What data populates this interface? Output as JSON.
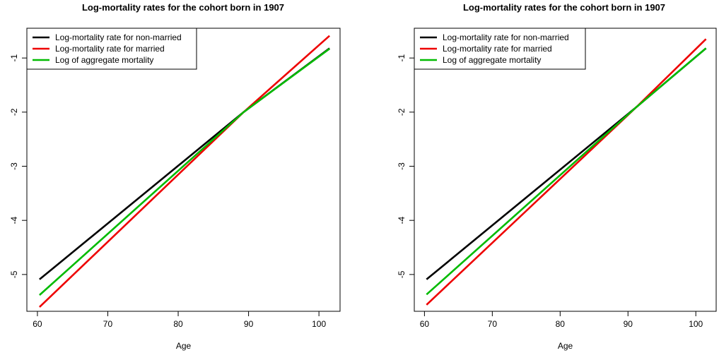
{
  "chart_data": [
    {
      "type": "line",
      "title": "Log-mortality rates for the cohort born in 1907",
      "xlabel": "Age",
      "ylabel": "",
      "xlim": [
        58.5,
        103
      ],
      "ylim": [
        -5.68,
        -0.45
      ],
      "xticks": [
        60,
        70,
        80,
        90,
        100
      ],
      "yticks": [
        -5,
        -4,
        -3,
        -2,
        -1
      ],
      "grid": false,
      "legend_position": "top-left",
      "series": [
        {
          "name": "Log-mortality rate for non-married",
          "color": "#000000",
          "x": [
            60.3,
            89.3,
            101.5
          ],
          "y": [
            -5.09,
            -2.0,
            -0.82
          ]
        },
        {
          "name": "Log-mortality rate for married",
          "color": "#ee0000",
          "x": [
            60.3,
            89.3,
            101.5
          ],
          "y": [
            -5.6,
            -2.0,
            -0.59
          ]
        },
        {
          "name": "Log of aggregate mortality",
          "color": "#00bb00",
          "x": [
            60.3,
            89.3,
            101.5
          ],
          "y": [
            -5.38,
            -2.0,
            -0.83
          ]
        }
      ]
    },
    {
      "type": "line",
      "title": "Log-mortality rates for the cohort born in 1907",
      "xlabel": "Age",
      "ylabel": "",
      "xlim": [
        58.5,
        103
      ],
      "ylim": [
        -5.68,
        -0.45
      ],
      "xticks": [
        60,
        70,
        80,
        90,
        100
      ],
      "yticks": [
        -5,
        -4,
        -3,
        -2,
        -1
      ],
      "grid": false,
      "legend_position": "top-left",
      "series": [
        {
          "name": "Log-mortality rate for non-married",
          "color": "#000000",
          "x": [
            60.3,
            91.3,
            101.5
          ],
          "y": [
            -5.09,
            -1.9,
            -0.82
          ]
        },
        {
          "name": "Log-mortality rate for married",
          "color": "#ee0000",
          "x": [
            60.3,
            91.3,
            101.5
          ],
          "y": [
            -5.56,
            -1.9,
            -0.65
          ]
        },
        {
          "name": "Log of aggregate mortality",
          "color": "#00bb00",
          "x": [
            60.3,
            91.3,
            101.5
          ],
          "y": [
            -5.37,
            -1.9,
            -0.82
          ]
        }
      ]
    }
  ]
}
